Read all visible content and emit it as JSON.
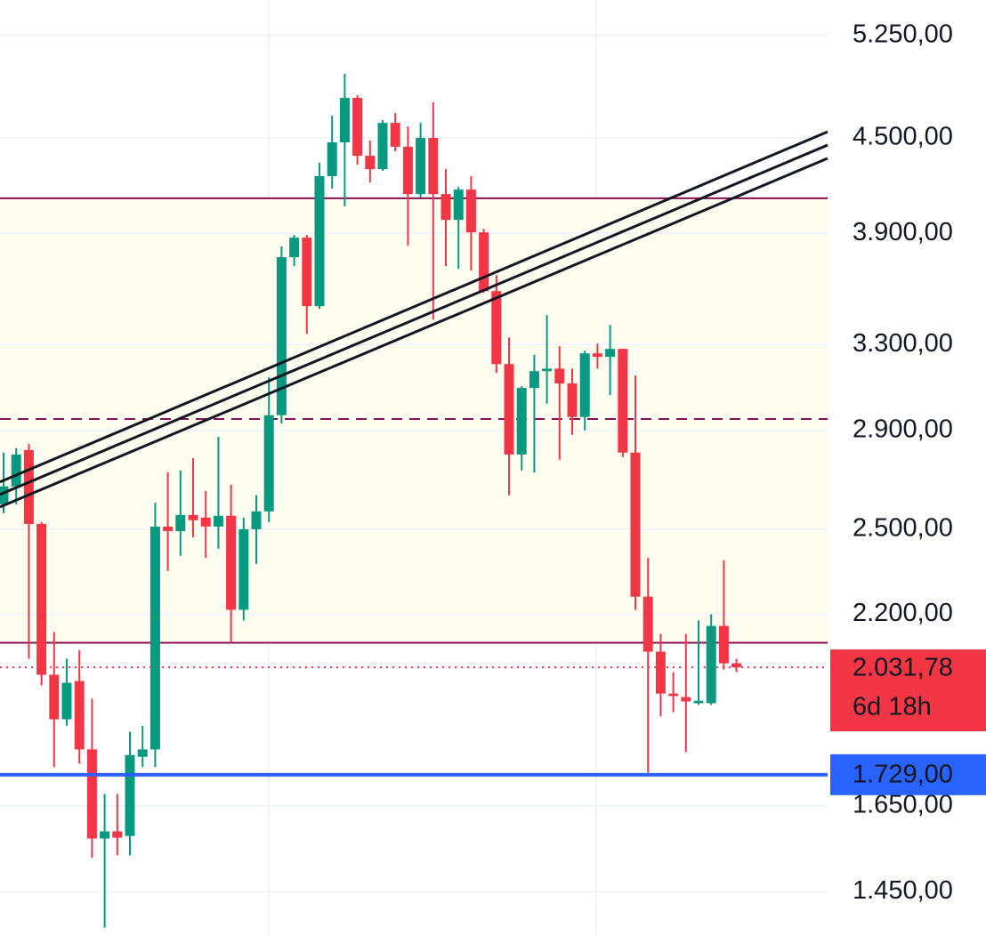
{
  "chart_data": {
    "type": "candlestick",
    "log_scale": true,
    "grid": true,
    "ylim": [
      1359,
      5536
    ],
    "yticks": [
      {
        "value": 5250,
        "label": "5.250,00"
      },
      {
        "value": 4500,
        "label": "4.500,00"
      },
      {
        "value": 3900,
        "label": "3.900,00"
      },
      {
        "value": 3300,
        "label": "3.300,00"
      },
      {
        "value": 2900,
        "label": "2.900,00"
      },
      {
        "value": 2500,
        "label": "2.500,00"
      },
      {
        "value": 2200,
        "label": "2.200,00"
      },
      {
        "value": 1650,
        "label": "1.650,00"
      },
      {
        "value": 1450,
        "label": "1.450,00"
      }
    ],
    "up_color": "#089981",
    "down_color": "#f23645",
    "open": [
      2595,
      2666,
      2816,
      2520,
      2009,
      1879,
      1990,
      1796,
      1571,
      1588,
      1577,
      1776,
      1796,
      2510,
      2493,
      2554,
      2544,
      2510,
      2551,
      2215,
      2500,
      2568,
      2967,
      3762,
      3874,
      3495,
      4249,
      4470,
      4779,
      4381,
      4294,
      4603,
      4441,
      4136,
      4500,
      4136,
      3979,
      4164,
      3905,
      3575,
      3204,
      2797,
      3091,
      3170,
      3182,
      3112,
      2959,
      3256,
      3239,
      3278,
      2805,
      2259,
      2080,
      1953,
      1943,
      1925,
      1925,
      2162,
      2044
    ],
    "high": [
      2805,
      2824,
      2842,
      2527,
      2142,
      2058,
      2085,
      1938,
      1680,
      1680,
      1844,
      1861,
      2602,
      2723,
      2731,
      2782,
      2648,
      2873,
      2673,
      2544,
      2631,
      3142,
      3823,
      3890,
      3890,
      4335,
      4653,
      4955,
      4798,
      4482,
      4622,
      4671,
      4578,
      4603,
      4747,
      4294,
      4181,
      4249,
      3926,
      3662,
      3335,
      3099,
      3248,
      3449,
      3291,
      3182,
      3269,
      3304,
      3398,
      3278,
      3149,
      2395,
      2136,
      2017,
      2136,
      2180,
      2200,
      2386,
      2058
    ],
    "low": [
      2561,
      2595,
      2058,
      1977,
      1749,
      1861,
      1758,
      1526,
      1374,
      1532,
      1532,
      1749,
      1749,
      2348,
      2402,
      2470,
      2395,
      2428,
      2108,
      2180,
      2373,
      2527,
      2931,
      3712,
      3353,
      3481,
      4170,
      4060,
      4323,
      4209,
      4283,
      4411,
      3828,
      4114,
      3426,
      3712,
      3697,
      3687,
      3566,
      3162,
      2631,
      2731,
      2723,
      3019,
      2775,
      2881,
      2900,
      3182,
      3058,
      2786,
      2215,
      1734,
      1887,
      1899,
      1789,
      1920,
      1920,
      2025,
      2017
    ],
    "close": [
      2666,
      2797,
      2520,
      2009,
      1879,
      1985,
      1796,
      1571,
      1588,
      1573,
      1781,
      1796,
      2510,
      2493,
      2554,
      2534,
      2510,
      2551,
      2215,
      2500,
      2568,
      2967,
      3762,
      3874,
      3495,
      4249,
      4470,
      4779,
      4381,
      4294,
      4603,
      4441,
      4136,
      4500,
      4136,
      3979,
      4164,
      3905,
      3575,
      3204,
      2797,
      3091,
      3170,
      3182,
      3112,
      2959,
      3256,
      3239,
      3278,
      2805,
      2259,
      2080,
      1953,
      1946,
      1930,
      1932,
      2162,
      2044,
      2031.78
    ],
    "zone": {
      "top": 4110,
      "bottom": 2108,
      "color": "#fdfdf0",
      "line_color": "#880e4f"
    },
    "dashed_level": {
      "value": 2950,
      "color": "#880e4f"
    },
    "trendlines": [
      {
        "values": [
          2684,
          4542
        ],
        "color": "#131722"
      },
      {
        "values": [
          2634,
          4452
        ],
        "color": "#131722"
      },
      {
        "values": [
          2585,
          4364
        ],
        "color": "#131722"
      }
    ],
    "current_price": {
      "value": 2031.78,
      "label": "2.031,78",
      "countdown": "6d 18h",
      "color": "#f23645"
    },
    "level": {
      "value": 1729,
      "label": "1.729,00",
      "color": "#2962ff"
    }
  }
}
